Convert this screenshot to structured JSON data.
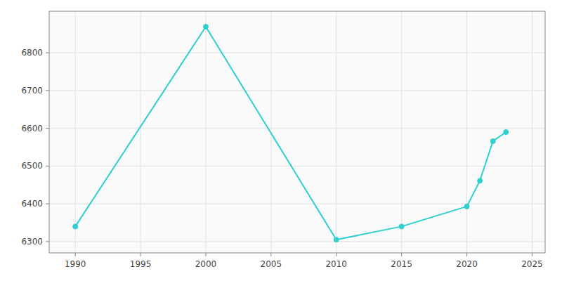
{
  "chart_data": {
    "type": "line",
    "x": [
      1990,
      2000,
      2010,
      2015,
      2020,
      2021,
      2022,
      2023
    ],
    "values": [
      6340,
      6869,
      6305,
      6340,
      6393,
      6461,
      6566,
      6590
    ],
    "color": "#2ecfcf",
    "marker": "circle",
    "xlim": [
      1988,
      2026
    ],
    "ylim": [
      6270,
      6910
    ],
    "xticks": [
      1990,
      1995,
      2000,
      2005,
      2010,
      2015,
      2020,
      2025
    ],
    "yticks": [
      6300,
      6400,
      6500,
      6600,
      6700,
      6800
    ],
    "grid": true
  }
}
